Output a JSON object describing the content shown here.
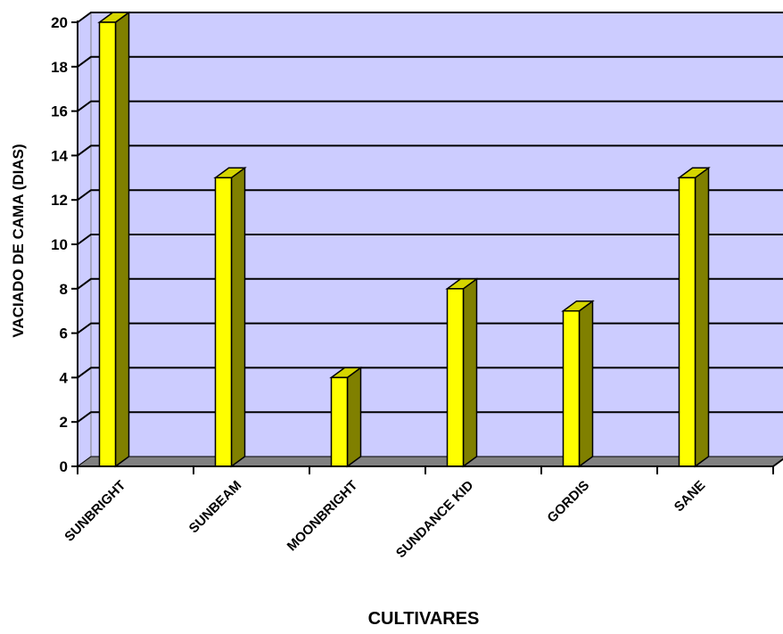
{
  "chart_data": {
    "type": "bar",
    "xlabel": "CULTIVARES",
    "ylabel": "VACIADO DE CAMA  (DIAS)",
    "categories": [
      "SUNBRIGHT",
      "SUNBEAM",
      "MOONBRIGHT",
      "SUNDANCE KID",
      "GORDIS",
      "SANE"
    ],
    "values": [
      20,
      13,
      4,
      8,
      7,
      13
    ],
    "ylim": [
      0,
      20
    ],
    "yticks": [
      0,
      2,
      4,
      6,
      8,
      10,
      12,
      14,
      16,
      18,
      20
    ],
    "grid": true,
    "legend": "none",
    "three_d": true
  },
  "colors": {
    "wall": "#ccccff",
    "floor": "#808080",
    "bar_front": "#ffff00",
    "bar_top": "#d6d600",
    "bar_side": "#808000",
    "gridline": "#000000"
  }
}
